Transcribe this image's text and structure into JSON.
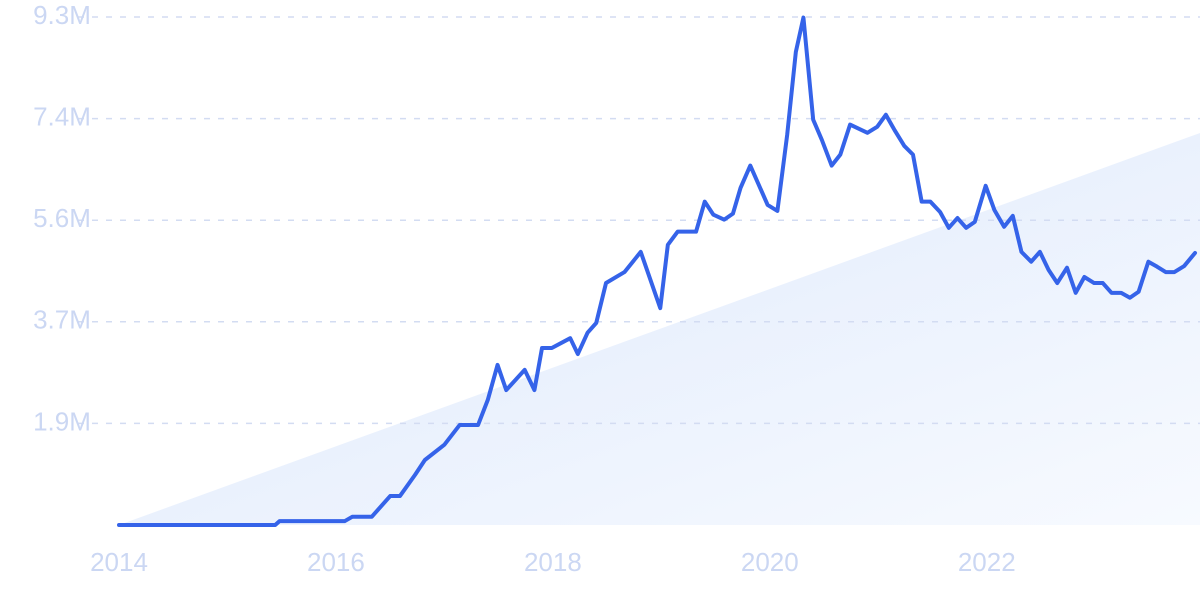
{
  "chart_data": {
    "type": "line",
    "x": [
      2014.0,
      2015.44,
      2015.48,
      2016.08,
      2016.15,
      2016.33,
      2016.5,
      2016.59,
      2016.73,
      2016.82,
      2017.0,
      2017.14,
      2017.31,
      2017.4,
      2017.49,
      2017.57,
      2017.74,
      2017.83,
      2017.9,
      2017.99,
      2018.16,
      2018.23,
      2018.32,
      2018.4,
      2018.49,
      2018.66,
      2018.81,
      2018.99,
      2019.06,
      2019.15,
      2019.32,
      2019.4,
      2019.48,
      2019.58,
      2019.66,
      2019.73,
      2019.82,
      2019.98,
      2020.07,
      2020.16,
      2020.24,
      2020.31,
      2020.4,
      2020.48,
      2020.57,
      2020.65,
      2020.74,
      2020.9,
      2020.99,
      2021.07,
      2021.15,
      2021.24,
      2021.32,
      2021.4,
      2021.48,
      2021.57,
      2021.65,
      2021.73,
      2021.81,
      2021.89,
      2021.99,
      2022.07,
      2022.16,
      2022.24,
      2022.32,
      2022.41,
      2022.49,
      2022.57,
      2022.65,
      2022.74,
      2022.82,
      2022.9,
      2022.99,
      2023.07,
      2023.15,
      2023.24,
      2023.32,
      2023.4,
      2023.49,
      2023.57,
      2023.65,
      2023.73,
      2023.82,
      2023.92
    ],
    "series": [
      {
        "color": "#3563e9",
        "values": [
          0,
          0,
          70000,
          70000,
          150000,
          150000,
          530000,
          530000,
          920000,
          1190000,
          1470000,
          1830000,
          1830000,
          2290000,
          2930000,
          2470000,
          2840000,
          2470000,
          3240000,
          3240000,
          3420000,
          3130000,
          3520000,
          3700000,
          4430000,
          4630000,
          5000000,
          3970000,
          5130000,
          5370000,
          5370000,
          5920000,
          5680000,
          5590000,
          5700000,
          6170000,
          6580000,
          5860000,
          5750000,
          7140000,
          8660000,
          9290000,
          7420000,
          7050000,
          6580000,
          6780000,
          7330000,
          7180000,
          7290000,
          7510000,
          7230000,
          6940000,
          6780000,
          5920000,
          5920000,
          5730000,
          5440000,
          5620000,
          5440000,
          5550000,
          6210000,
          5770000,
          5460000,
          5660000,
          5000000,
          4820000,
          5000000,
          4670000,
          4430000,
          4710000,
          4250000,
          4540000,
          4430000,
          4430000,
          4250000,
          4250000,
          4160000,
          4270000,
          4820000,
          4730000,
          4630000,
          4630000,
          4740000,
          4980000
        ]
      }
    ],
    "xlim": [
      2014,
      2023.92
    ],
    "xticks": [
      2014,
      2016,
      2018,
      2020,
      2022
    ],
    "ylim": [
      0,
      9300000
    ],
    "yticks": [
      {
        "value": 1860000,
        "label": "1.9M"
      },
      {
        "value": 3720000,
        "label": "3.7M"
      },
      {
        "value": 5580000,
        "label": "5.6M"
      },
      {
        "value": 7440000,
        "label": "7.4M"
      },
      {
        "value": 9300000,
        "label": "9.3M"
      }
    ],
    "grid": true
  }
}
